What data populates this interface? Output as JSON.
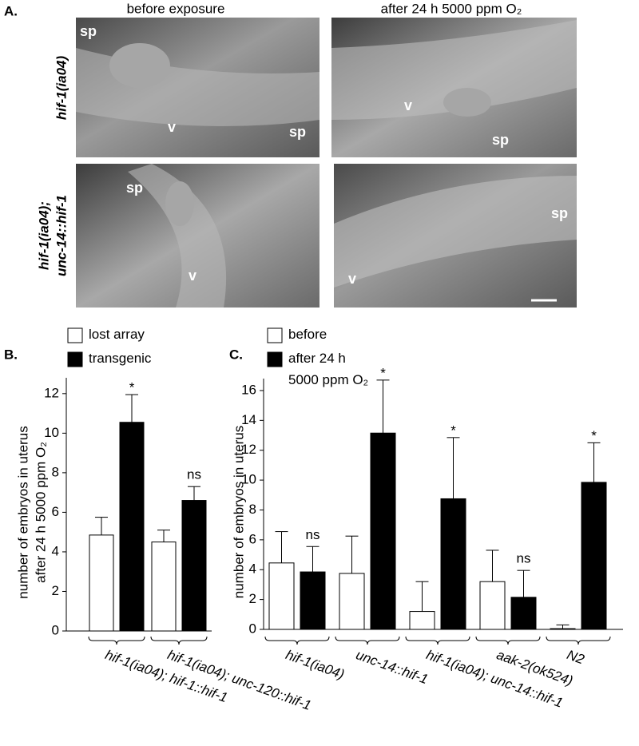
{
  "panel_a": {
    "label": "A.",
    "columns": [
      "before exposure",
      "after 24 h 5000 ppm O₂"
    ],
    "rows": [
      [
        "hif-1(ia04)"
      ],
      [
        "hif-1(ia04);",
        "unc-14::hif-1"
      ]
    ],
    "images": [
      {
        "labels": [
          "sp",
          "v",
          "sp"
        ]
      },
      {
        "labels": [
          "v",
          "sp"
        ]
      },
      {
        "labels": [
          "sp",
          "v"
        ]
      },
      {
        "labels": [
          "sp",
          "v"
        ]
      }
    ]
  },
  "chart_data": [
    {
      "type": "bar",
      "label": "B.",
      "ylabel": [
        "number of embryos in uterus",
        "after 24 h 5000 ppm O₂"
      ],
      "categories": [
        "hif-1(ia04); hif-1::hif-1",
        "hif-1(ia04); unc-120::hif-1"
      ],
      "series": [
        {
          "name": "lost array",
          "color": "#ffffff",
          "values": [
            4.85,
            4.5
          ],
          "errors": [
            0.9,
            0.6
          ],
          "annotations": [
            null,
            null
          ]
        },
        {
          "name": "transgenic",
          "color": "#000000",
          "values": [
            10.55,
            6.6
          ],
          "errors": [
            1.4,
            0.7
          ],
          "annotations": [
            "*",
            "ns"
          ]
        }
      ],
      "ylim": [
        0,
        12.8
      ],
      "yticks": [
        0,
        2,
        4,
        6,
        8,
        10,
        12
      ]
    },
    {
      "type": "bar",
      "label": "C.",
      "ylabel": [
        "number of embryos in uterus"
      ],
      "categories": [
        "hif-1(ia04)",
        "unc-14::hif-1",
        "hif-1(ia04); unc-14::hif-1",
        "aak-2(ok524)",
        "N2"
      ],
      "series": [
        {
          "name": "before",
          "color": "#ffffff",
          "values": [
            4.45,
            3.75,
            1.2,
            3.2,
            0.05
          ],
          "errors": [
            2.1,
            2.5,
            2.0,
            2.1,
            0.25
          ],
          "annotations": [
            null,
            null,
            null,
            null,
            null
          ]
        },
        {
          "name": "after 24 h\n5000 ppm O₂",
          "color": "#000000",
          "values": [
            3.85,
            13.15,
            8.75,
            2.15,
            9.85
          ],
          "errors": [
            1.7,
            3.55,
            4.1,
            1.8,
            2.65
          ],
          "annotations": [
            "ns",
            "*",
            "*",
            "ns",
            "*"
          ]
        }
      ],
      "ylim": [
        0,
        16.8
      ],
      "yticks": [
        0,
        2,
        4,
        6,
        8,
        10,
        12,
        14,
        16
      ]
    }
  ]
}
